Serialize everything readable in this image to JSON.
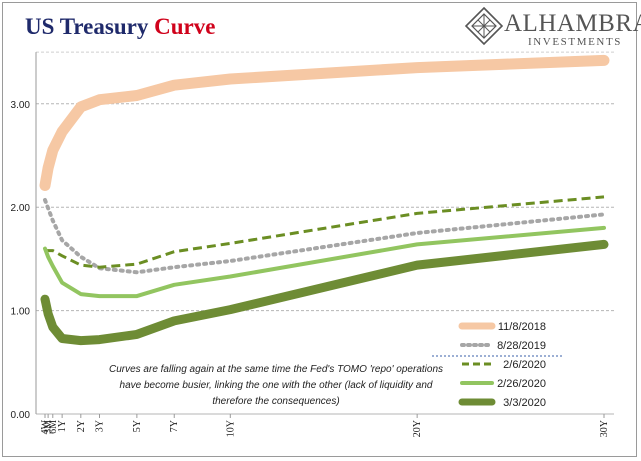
{
  "title": {
    "main": "US Treasury",
    "accent": "Curve"
  },
  "logo": {
    "name": "ALHAMBRA",
    "sub": "INVESTMENTS",
    "icon": "diamond-lattice-icon"
  },
  "annotation": "Curves are falling again at the same time the Fed's TOMO 'repo' operations have become busier, linking the one with the other (lack of liquidity and therefore the consequences)",
  "chart_data": {
    "type": "line",
    "categories": [
      "4W",
      "3M",
      "6M",
      "1Y",
      "2Y",
      "3Y",
      "5Y",
      "7Y",
      "10Y",
      "20Y",
      "30Y"
    ],
    "tick_labels": [
      "4W",
      "3M",
      "6M",
      "1Y",
      "2Y",
      "3Y",
      "5Y",
      "7Y",
      "10Y",
      "20Y",
      "30Y"
    ],
    "x_months": [
      1,
      3,
      6,
      12,
      24,
      36,
      60,
      84,
      120,
      240,
      360
    ],
    "ylim": [
      0,
      3.5
    ],
    "yticks": [
      0,
      1,
      2,
      3
    ],
    "ytick_labels": [
      "0.00",
      "1.00",
      "2.00",
      "3.00"
    ],
    "grid": "horizontal dashed",
    "legend_position": "bottom-right",
    "series": [
      {
        "name": "11/8/2018",
        "color": "#f6c8a4",
        "style": "solid",
        "width": 11,
        "values": [
          2.21,
          2.38,
          2.55,
          2.73,
          2.97,
          3.04,
          3.08,
          3.18,
          3.24,
          3.35,
          3.42
        ]
      },
      {
        "name": "8/28/2019",
        "color": "#a6a6a6",
        "style": "dotted",
        "width": 4,
        "values": [
          2.07,
          1.99,
          1.87,
          1.68,
          1.52,
          1.41,
          1.37,
          1.42,
          1.48,
          1.75,
          1.93
        ]
      },
      {
        "name": "2/6/2020",
        "color": "#6b8e23",
        "style": "dashed",
        "width": 3,
        "values": [
          1.58,
          1.58,
          1.58,
          1.53,
          1.44,
          1.42,
          1.45,
          1.57,
          1.65,
          1.94,
          2.1
        ]
      },
      {
        "name": "2/26/2020",
        "color": "#92c560",
        "style": "solid",
        "width": 4,
        "values": [
          1.6,
          1.52,
          1.43,
          1.27,
          1.16,
          1.14,
          1.14,
          1.25,
          1.33,
          1.64,
          1.8
        ]
      },
      {
        "name": "3/3/2020",
        "color": "#6e8c35",
        "style": "solid",
        "width": 9,
        "values": [
          1.11,
          0.97,
          0.84,
          0.73,
          0.71,
          0.72,
          0.77,
          0.9,
          1.01,
          1.44,
          1.64
        ]
      }
    ]
  }
}
